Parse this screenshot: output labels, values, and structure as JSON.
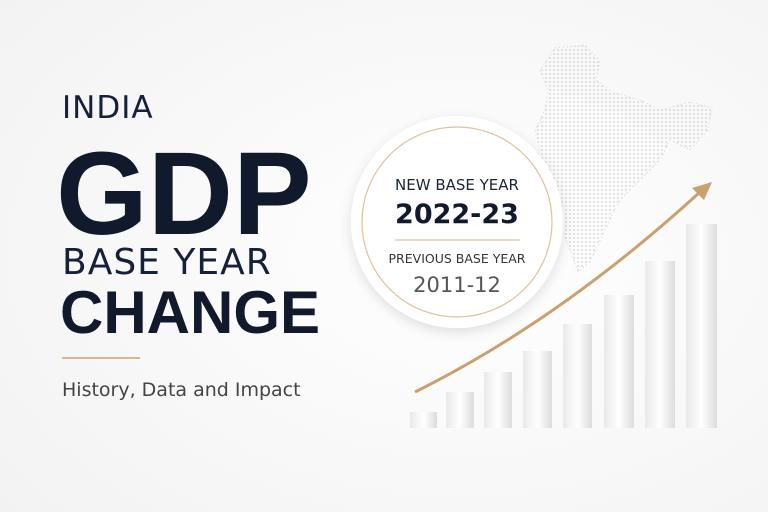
{
  "title": {
    "country": "INDIA",
    "main": "GDP",
    "line1": "BASE YEAR",
    "line2": "CHANGE"
  },
  "subtitle": "History, Data and Impact",
  "badge": {
    "new_label": "NEW BASE YEAR",
    "new_value": "2022-23",
    "previous_label": "PREVIOUS BASE YEAR",
    "previous_value": "2011-12"
  }
}
